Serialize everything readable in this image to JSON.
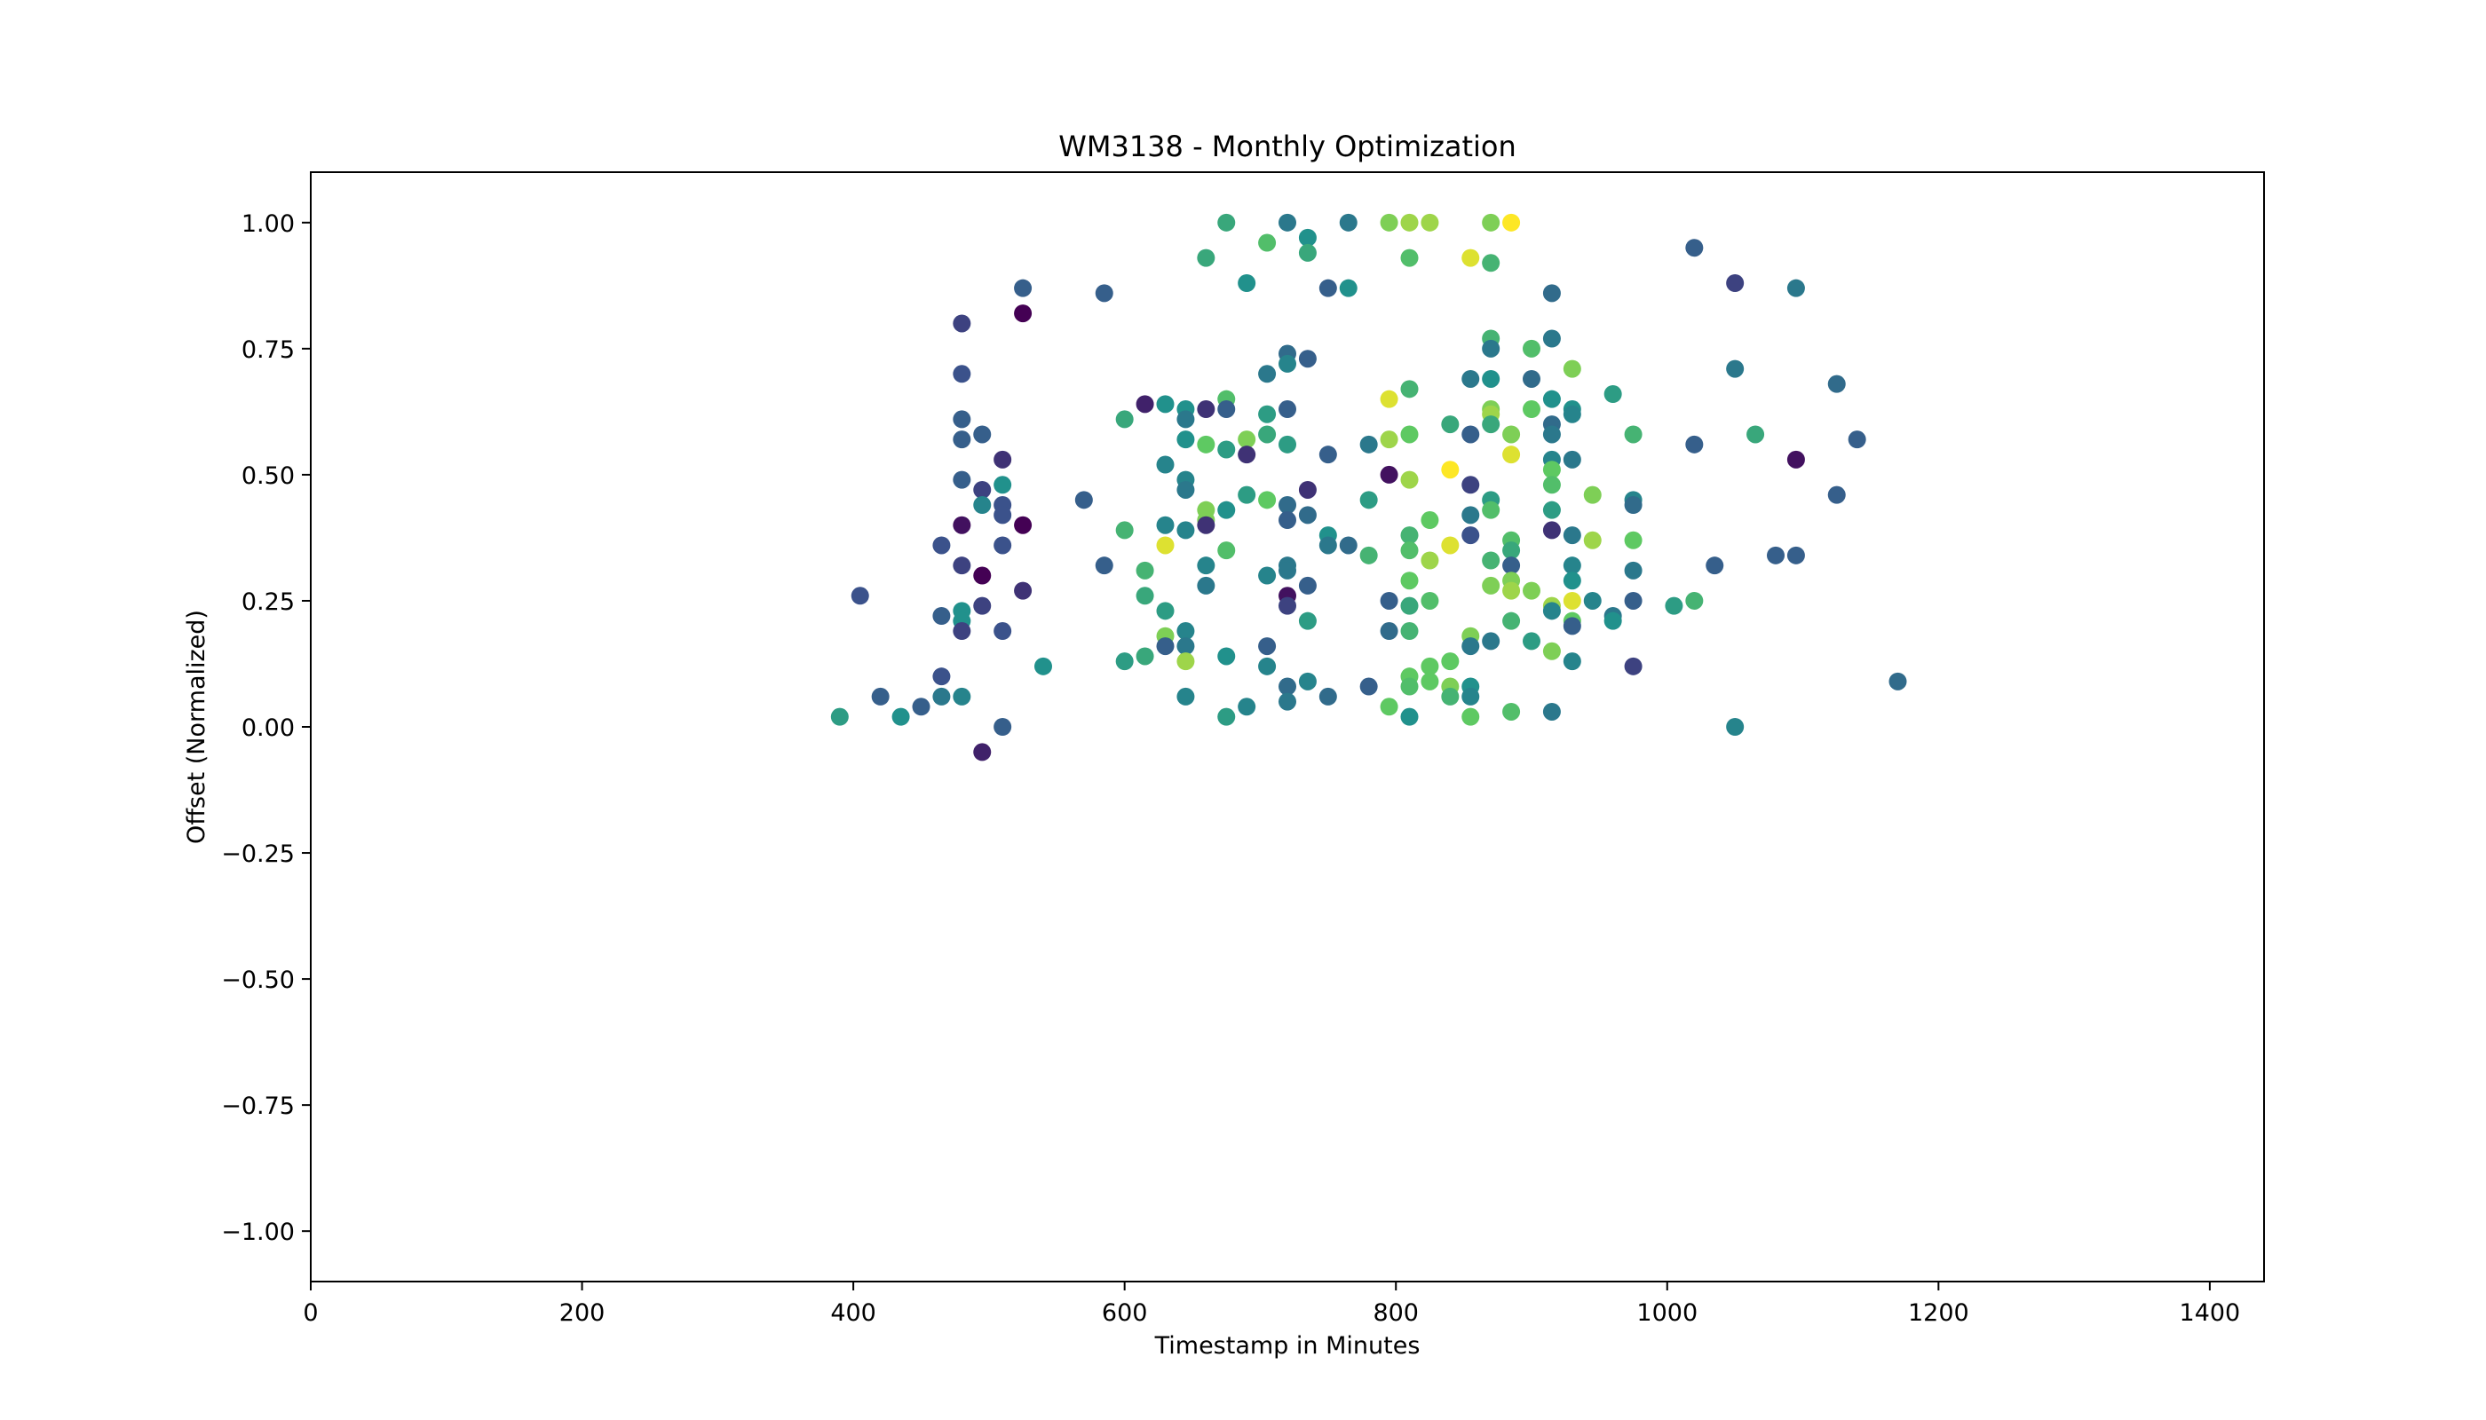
{
  "chart_data": {
    "type": "scatter",
    "title": "WM3138 - Monthly Optimization",
    "xlabel": "Timestamp in Minutes",
    "ylabel": "Offset (Normalized)",
    "xlim": [
      0,
      1440
    ],
    "ylim": [
      -1.1,
      1.1
    ],
    "x_ticks": [
      0,
      200,
      400,
      600,
      800,
      1000,
      1200,
      1400
    ],
    "x_tick_labels": [
      "0",
      "200",
      "400",
      "600",
      "800",
      "1000",
      "1200",
      "1400"
    ],
    "y_ticks": [
      1.0,
      0.75,
      0.5,
      0.25,
      0.0,
      -0.25,
      -0.5,
      -0.75,
      -1.0
    ],
    "y_tick_labels": [
      "1.00",
      "0.75",
      "0.50",
      "0.25",
      "0.00",
      "−0.25",
      "−0.50",
      "−0.75",
      "−1.00"
    ],
    "grid": false,
    "colormap": "viridis",
    "colormap_stops": [
      "#440154",
      "#3b528b",
      "#21918c",
      "#5ec962",
      "#fde725"
    ],
    "points": [
      [
        390,
        0.02,
        0.55
      ],
      [
        405,
        0.26,
        0.25
      ],
      [
        420,
        0.06,
        0.3
      ],
      [
        435,
        0.02,
        0.5
      ],
      [
        450,
        0.04,
        0.3
      ],
      [
        465,
        0.36,
        0.25
      ],
      [
        465,
        0.22,
        0.3
      ],
      [
        465,
        0.1,
        0.25
      ],
      [
        465,
        0.06,
        0.4
      ],
      [
        480,
        0.8,
        0.2
      ],
      [
        480,
        0.7,
        0.25
      ],
      [
        480,
        0.61,
        0.3
      ],
      [
        480,
        0.57,
        0.3
      ],
      [
        480,
        0.49,
        0.3
      ],
      [
        480,
        0.4,
        0.05
      ],
      [
        480,
        0.32,
        0.2
      ],
      [
        480,
        0.23,
        0.5
      ],
      [
        480,
        0.21,
        0.5
      ],
      [
        480,
        0.19,
        0.2
      ],
      [
        480,
        0.06,
        0.45
      ],
      [
        495,
        0.58,
        0.3
      ],
      [
        495,
        0.47,
        0.2
      ],
      [
        495,
        0.44,
        0.45
      ],
      [
        495,
        0.3,
        0.0
      ],
      [
        495,
        0.24,
        0.2
      ],
      [
        495,
        -0.05,
        0.1
      ],
      [
        510,
        0.53,
        0.15
      ],
      [
        510,
        0.48,
        0.5
      ],
      [
        510,
        0.44,
        0.25
      ],
      [
        510,
        0.42,
        0.25
      ],
      [
        510,
        0.36,
        0.25
      ],
      [
        510,
        0.19,
        0.25
      ],
      [
        510,
        0.0,
        0.3
      ],
      [
        525,
        0.87,
        0.3
      ],
      [
        525,
        0.82,
        0.0
      ],
      [
        525,
        0.4,
        0.0
      ],
      [
        525,
        0.27,
        0.15
      ],
      [
        540,
        0.12,
        0.5
      ],
      [
        570,
        0.45,
        0.3
      ],
      [
        585,
        0.86,
        0.3
      ],
      [
        585,
        0.32,
        0.3
      ],
      [
        600,
        0.61,
        0.6
      ],
      [
        600,
        0.39,
        0.65
      ],
      [
        600,
        0.13,
        0.55
      ],
      [
        615,
        0.64,
        0.1
      ],
      [
        615,
        0.31,
        0.65
      ],
      [
        615,
        0.26,
        0.6
      ],
      [
        615,
        0.14,
        0.6
      ],
      [
        630,
        0.64,
        0.5
      ],
      [
        630,
        0.52,
        0.45
      ],
      [
        630,
        0.4,
        0.45
      ],
      [
        630,
        0.36,
        0.95
      ],
      [
        630,
        0.23,
        0.55
      ],
      [
        630,
        0.18,
        0.8
      ],
      [
        630,
        0.16,
        0.3
      ],
      [
        645,
        0.63,
        0.5
      ],
      [
        645,
        0.61,
        0.4
      ],
      [
        645,
        0.57,
        0.5
      ],
      [
        645,
        0.49,
        0.45
      ],
      [
        645,
        0.47,
        0.4
      ],
      [
        645,
        0.39,
        0.45
      ],
      [
        645,
        0.19,
        0.45
      ],
      [
        645,
        0.16,
        0.4
      ],
      [
        645,
        0.13,
        0.85
      ],
      [
        645,
        0.06,
        0.45
      ],
      [
        660,
        0.93,
        0.6
      ],
      [
        660,
        0.63,
        0.15
      ],
      [
        660,
        0.56,
        0.75
      ],
      [
        660,
        0.43,
        0.8
      ],
      [
        660,
        0.41,
        0.8
      ],
      [
        660,
        0.4,
        0.15
      ],
      [
        660,
        0.32,
        0.45
      ],
      [
        660,
        0.28,
        0.4
      ],
      [
        675,
        1.0,
        0.6
      ],
      [
        675,
        0.65,
        0.7
      ],
      [
        675,
        0.63,
        0.3
      ],
      [
        675,
        0.55,
        0.55
      ],
      [
        675,
        0.43,
        0.5
      ],
      [
        675,
        0.35,
        0.7
      ],
      [
        675,
        0.14,
        0.5
      ],
      [
        675,
        0.02,
        0.55
      ],
      [
        690,
        0.88,
        0.5
      ],
      [
        690,
        0.57,
        0.8
      ],
      [
        690,
        0.54,
        0.15
      ],
      [
        690,
        0.46,
        0.55
      ],
      [
        690,
        0.04,
        0.45
      ],
      [
        705,
        0.96,
        0.7
      ],
      [
        705,
        0.7,
        0.4
      ],
      [
        705,
        0.62,
        0.55
      ],
      [
        705,
        0.58,
        0.6
      ],
      [
        705,
        0.45,
        0.75
      ],
      [
        705,
        0.3,
        0.45
      ],
      [
        705,
        0.16,
        0.3
      ],
      [
        705,
        0.12,
        0.45
      ],
      [
        720,
        1.0,
        0.4
      ],
      [
        720,
        0.74,
        0.35
      ],
      [
        720,
        0.72,
        0.45
      ],
      [
        720,
        0.63,
        0.3
      ],
      [
        720,
        0.56,
        0.55
      ],
      [
        720,
        0.44,
        0.35
      ],
      [
        720,
        0.41,
        0.3
      ],
      [
        720,
        0.32,
        0.4
      ],
      [
        720,
        0.31,
        0.4
      ],
      [
        720,
        0.26,
        0.05
      ],
      [
        720,
        0.24,
        0.2
      ],
      [
        720,
        0.08,
        0.35
      ],
      [
        720,
        0.05,
        0.4
      ],
      [
        735,
        0.97,
        0.5
      ],
      [
        735,
        0.94,
        0.6
      ],
      [
        735,
        0.73,
        0.3
      ],
      [
        735,
        0.47,
        0.15
      ],
      [
        735,
        0.42,
        0.35
      ],
      [
        735,
        0.28,
        0.3
      ],
      [
        735,
        0.21,
        0.55
      ],
      [
        735,
        0.09,
        0.45
      ],
      [
        750,
        0.87,
        0.3
      ],
      [
        750,
        0.54,
        0.3
      ],
      [
        750,
        0.38,
        0.5
      ],
      [
        750,
        0.36,
        0.4
      ],
      [
        750,
        0.06,
        0.35
      ],
      [
        765,
        1.0,
        0.4
      ],
      [
        765,
        0.87,
        0.5
      ],
      [
        765,
        0.36,
        0.35
      ],
      [
        780,
        0.56,
        0.4
      ],
      [
        780,
        0.45,
        0.55
      ],
      [
        780,
        0.34,
        0.65
      ],
      [
        780,
        0.08,
        0.3
      ],
      [
        795,
        1.0,
        0.8
      ],
      [
        795,
        0.65,
        0.95
      ],
      [
        795,
        0.57,
        0.85
      ],
      [
        795,
        0.5,
        0.05
      ],
      [
        795,
        0.25,
        0.3
      ],
      [
        795,
        0.19,
        0.35
      ],
      [
        795,
        0.04,
        0.75
      ],
      [
        810,
        1.0,
        0.85
      ],
      [
        810,
        0.93,
        0.7
      ],
      [
        810,
        0.67,
        0.65
      ],
      [
        810,
        0.58,
        0.75
      ],
      [
        810,
        0.49,
        0.85
      ],
      [
        810,
        0.38,
        0.65
      ],
      [
        810,
        0.35,
        0.7
      ],
      [
        810,
        0.29,
        0.75
      ],
      [
        810,
        0.24,
        0.6
      ],
      [
        810,
        0.19,
        0.65
      ],
      [
        810,
        0.1,
        0.75
      ],
      [
        810,
        0.08,
        0.7
      ],
      [
        810,
        0.02,
        0.5
      ],
      [
        825,
        1.0,
        0.85
      ],
      [
        825,
        0.41,
        0.75
      ],
      [
        825,
        0.33,
        0.85
      ],
      [
        825,
        0.25,
        0.7
      ],
      [
        825,
        0.12,
        0.75
      ],
      [
        825,
        0.09,
        0.75
      ],
      [
        840,
        0.6,
        0.6
      ],
      [
        840,
        0.51,
        1.0
      ],
      [
        840,
        0.36,
        0.95
      ],
      [
        840,
        0.13,
        0.75
      ],
      [
        840,
        0.08,
        0.8
      ],
      [
        840,
        0.06,
        0.65
      ],
      [
        855,
        0.93,
        0.95
      ],
      [
        855,
        0.69,
        0.4
      ],
      [
        855,
        0.58,
        0.3
      ],
      [
        855,
        0.48,
        0.2
      ],
      [
        855,
        0.42,
        0.4
      ],
      [
        855,
        0.38,
        0.25
      ],
      [
        855,
        0.18,
        0.8
      ],
      [
        855,
        0.16,
        0.4
      ],
      [
        855,
        0.08,
        0.5
      ],
      [
        855,
        0.06,
        0.45
      ],
      [
        855,
        0.02,
        0.75
      ],
      [
        870,
        1.0,
        0.8
      ],
      [
        870,
        0.92,
        0.65
      ],
      [
        870,
        0.77,
        0.65
      ],
      [
        870,
        0.75,
        0.4
      ],
      [
        870,
        0.69,
        0.5
      ],
      [
        870,
        0.63,
        0.8
      ],
      [
        870,
        0.62,
        0.85
      ],
      [
        870,
        0.6,
        0.6
      ],
      [
        870,
        0.45,
        0.55
      ],
      [
        870,
        0.43,
        0.7
      ],
      [
        870,
        0.33,
        0.65
      ],
      [
        870,
        0.28,
        0.8
      ],
      [
        870,
        0.17,
        0.4
      ],
      [
        885,
        1.0,
        1.0
      ],
      [
        885,
        0.58,
        0.8
      ],
      [
        885,
        0.54,
        0.95
      ],
      [
        885,
        0.37,
        0.7
      ],
      [
        885,
        0.35,
        0.6
      ],
      [
        885,
        0.32,
        0.3
      ],
      [
        885,
        0.29,
        0.8
      ],
      [
        885,
        0.27,
        0.85
      ],
      [
        885,
        0.21,
        0.65
      ],
      [
        885,
        0.03,
        0.7
      ],
      [
        900,
        0.75,
        0.7
      ],
      [
        900,
        0.69,
        0.35
      ],
      [
        900,
        0.63,
        0.75
      ],
      [
        900,
        0.27,
        0.8
      ],
      [
        900,
        0.17,
        0.55
      ],
      [
        915,
        0.86,
        0.35
      ],
      [
        915,
        0.77,
        0.4
      ],
      [
        915,
        0.65,
        0.5
      ],
      [
        915,
        0.6,
        0.35
      ],
      [
        915,
        0.58,
        0.4
      ],
      [
        915,
        0.53,
        0.45
      ],
      [
        915,
        0.51,
        0.75
      ],
      [
        915,
        0.48,
        0.7
      ],
      [
        915,
        0.43,
        0.55
      ],
      [
        915,
        0.39,
        0.15
      ],
      [
        915,
        0.24,
        0.85
      ],
      [
        915,
        0.23,
        0.45
      ],
      [
        915,
        0.15,
        0.8
      ],
      [
        915,
        0.03,
        0.4
      ],
      [
        930,
        0.71,
        0.8
      ],
      [
        930,
        0.63,
        0.5
      ],
      [
        930,
        0.62,
        0.45
      ],
      [
        930,
        0.53,
        0.4
      ],
      [
        930,
        0.38,
        0.4
      ],
      [
        930,
        0.32,
        0.45
      ],
      [
        930,
        0.29,
        0.5
      ],
      [
        930,
        0.25,
        0.95
      ],
      [
        930,
        0.21,
        0.75
      ],
      [
        930,
        0.2,
        0.3
      ],
      [
        930,
        0.13,
        0.45
      ],
      [
        945,
        0.46,
        0.8
      ],
      [
        945,
        0.37,
        0.85
      ],
      [
        945,
        0.25,
        0.45
      ],
      [
        960,
        0.66,
        0.55
      ],
      [
        960,
        0.22,
        0.4
      ],
      [
        960,
        0.21,
        0.5
      ],
      [
        975,
        0.58,
        0.65
      ],
      [
        975,
        0.45,
        0.45
      ],
      [
        975,
        0.44,
        0.35
      ],
      [
        975,
        0.37,
        0.75
      ],
      [
        975,
        0.31,
        0.4
      ],
      [
        975,
        0.25,
        0.3
      ],
      [
        975,
        0.12,
        0.2
      ],
      [
        1005,
        0.24,
        0.55
      ],
      [
        1020,
        0.95,
        0.3
      ],
      [
        1020,
        0.56,
        0.3
      ],
      [
        1020,
        0.25,
        0.65
      ],
      [
        1035,
        0.32,
        0.3
      ],
      [
        1050,
        0.88,
        0.2
      ],
      [
        1050,
        0.71,
        0.4
      ],
      [
        1050,
        0.0,
        0.45
      ],
      [
        1065,
        0.58,
        0.6
      ],
      [
        1080,
        0.34,
        0.3
      ],
      [
        1095,
        0.87,
        0.4
      ],
      [
        1095,
        0.53,
        0.05
      ],
      [
        1095,
        0.34,
        0.3
      ],
      [
        1125,
        0.68,
        0.35
      ],
      [
        1125,
        0.46,
        0.3
      ],
      [
        1140,
        0.57,
        0.3
      ],
      [
        1170,
        0.09,
        0.35
      ]
    ]
  }
}
